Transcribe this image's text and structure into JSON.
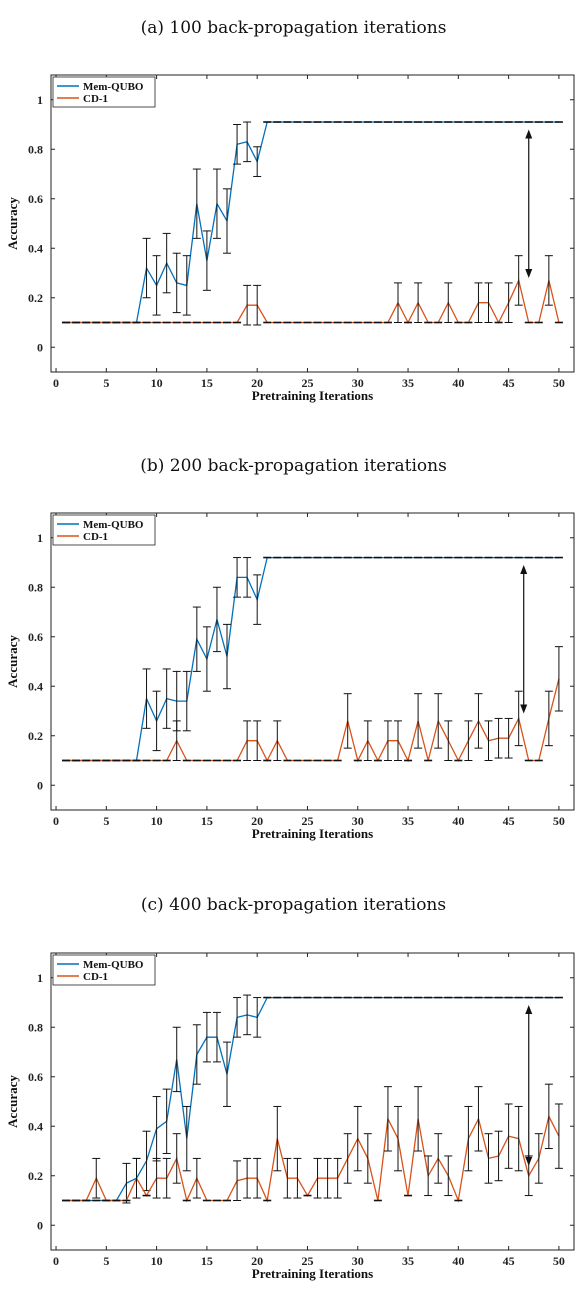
{
  "chart_data": [
    {
      "type": "line",
      "title": "(a) 100 back-propagation iterations",
      "xlabel": "Pretraining Iterations",
      "ylabel": "Accuracy",
      "xlim": [
        -0.5,
        51.5
      ],
      "ylim": [
        -0.1,
        1.1
      ],
      "xticks": [
        0,
        5,
        10,
        15,
        20,
        25,
        30,
        35,
        40,
        45,
        50
      ],
      "yticks": [
        0,
        0.2,
        0.4,
        0.6,
        0.8,
        1
      ],
      "legend": "top-left",
      "series": [
        {
          "name": "Mem-QUBO",
          "color": "#0072bd",
          "values": [
            0.1,
            0.1,
            0.1,
            0.1,
            0.1,
            0.1,
            0.1,
            0.1,
            0.32,
            0.25,
            0.34,
            0.26,
            0.25,
            0.58,
            0.35,
            0.58,
            0.51,
            0.82,
            0.83,
            0.75,
            0.91,
            0.91,
            0.91,
            0.91,
            0.91,
            0.91,
            0.91,
            0.91,
            0.91,
            0.91,
            0.91,
            0.91,
            0.91,
            0.91,
            0.91,
            0.91,
            0.91,
            0.91,
            0.91,
            0.91,
            0.91,
            0.91,
            0.91,
            0.91,
            0.91,
            0.91,
            0.91,
            0.91,
            0.91,
            0.91
          ],
          "errors": [
            0,
            0,
            0,
            0,
            0,
            0,
            0,
            0,
            0.12,
            0.12,
            0.12,
            0.12,
            0.12,
            0.14,
            0.12,
            0.14,
            0.13,
            0.08,
            0.08,
            0.06,
            0,
            0,
            0,
            0,
            0,
            0,
            0,
            0,
            0,
            0,
            0,
            0,
            0,
            0,
            0,
            0,
            0,
            0,
            0,
            0,
            0,
            0,
            0,
            0,
            0,
            0,
            0,
            0,
            0,
            0
          ]
        },
        {
          "name": "CD-1",
          "color": "#d95319",
          "values": [
            0.1,
            0.1,
            0.1,
            0.1,
            0.1,
            0.1,
            0.1,
            0.1,
            0.1,
            0.1,
            0.1,
            0.1,
            0.1,
            0.1,
            0.1,
            0.1,
            0.1,
            0.1,
            0.17,
            0.17,
            0.1,
            0.1,
            0.1,
            0.1,
            0.1,
            0.1,
            0.1,
            0.1,
            0.1,
            0.1,
            0.1,
            0.1,
            0.1,
            0.18,
            0.1,
            0.18,
            0.1,
            0.1,
            0.18,
            0.1,
            0.1,
            0.18,
            0.18,
            0.1,
            0.18,
            0.27,
            0.1,
            0.1,
            0.27,
            0.1
          ],
          "errors": [
            0,
            0,
            0,
            0,
            0,
            0,
            0,
            0,
            0,
            0,
            0,
            0,
            0,
            0,
            0,
            0,
            0,
            0,
            0.08,
            0.08,
            0,
            0,
            0,
            0,
            0,
            0,
            0,
            0,
            0,
            0,
            0,
            0,
            0,
            0.08,
            0,
            0.08,
            0,
            0,
            0.08,
            0,
            0,
            0.08,
            0.08,
            0,
            0.08,
            0.1,
            0,
            0,
            0.1,
            0
          ]
        }
      ],
      "arrow": {
        "x": 47,
        "y_from": 0.28,
        "y_to": 0.88
      }
    },
    {
      "type": "line",
      "title": "(b) 200 back-propagation iterations",
      "xlabel": "Pretraining Iterations",
      "ylabel": "Accuracy",
      "xlim": [
        -0.5,
        51.5
      ],
      "ylim": [
        -0.1,
        1.1
      ],
      "xticks": [
        0,
        5,
        10,
        15,
        20,
        25,
        30,
        35,
        40,
        45,
        50
      ],
      "yticks": [
        0,
        0.2,
        0.4,
        0.6,
        0.8,
        1
      ],
      "legend": "top-left",
      "series": [
        {
          "name": "Mem-QUBO",
          "color": "#0072bd",
          "values": [
            0.1,
            0.1,
            0.1,
            0.1,
            0.1,
            0.1,
            0.1,
            0.1,
            0.35,
            0.26,
            0.35,
            0.34,
            0.34,
            0.59,
            0.51,
            0.67,
            0.52,
            0.84,
            0.84,
            0.75,
            0.92,
            0.92,
            0.92,
            0.92,
            0.92,
            0.92,
            0.92,
            0.92,
            0.92,
            0.92,
            0.92,
            0.92,
            0.92,
            0.92,
            0.92,
            0.92,
            0.92,
            0.92,
            0.92,
            0.92,
            0.92,
            0.92,
            0.92,
            0.92,
            0.92,
            0.92,
            0.92,
            0.92,
            0.92,
            0.92
          ],
          "errors": [
            0,
            0,
            0,
            0,
            0,
            0,
            0,
            0,
            0.12,
            0.12,
            0.12,
            0.12,
            0.12,
            0.13,
            0.13,
            0.13,
            0.13,
            0.08,
            0.08,
            0.1,
            0,
            0,
            0,
            0,
            0,
            0,
            0,
            0,
            0,
            0,
            0,
            0,
            0,
            0,
            0,
            0,
            0,
            0,
            0,
            0,
            0,
            0,
            0,
            0,
            0,
            0,
            0,
            0,
            0,
            0
          ]
        },
        {
          "name": "CD-1",
          "color": "#d95319",
          "values": [
            0.1,
            0.1,
            0.1,
            0.1,
            0.1,
            0.1,
            0.1,
            0.1,
            0.1,
            0.1,
            0.1,
            0.18,
            0.1,
            0.1,
            0.1,
            0.1,
            0.1,
            0.1,
            0.18,
            0.18,
            0.1,
            0.18,
            0.1,
            0.1,
            0.1,
            0.1,
            0.1,
            0.1,
            0.26,
            0.1,
            0.18,
            0.1,
            0.18,
            0.18,
            0.1,
            0.26,
            0.1,
            0.26,
            0.18,
            0.1,
            0.18,
            0.26,
            0.18,
            0.19,
            0.19,
            0.27,
            0.1,
            0.1,
            0.27,
            0.43
          ],
          "errors": [
            0,
            0,
            0,
            0,
            0,
            0,
            0,
            0,
            0,
            0,
            0,
            0.08,
            0,
            0,
            0,
            0,
            0,
            0,
            0.08,
            0.08,
            0,
            0.08,
            0,
            0,
            0,
            0,
            0,
            0,
            0.11,
            0,
            0.08,
            0,
            0.08,
            0.08,
            0,
            0.11,
            0,
            0.11,
            0.08,
            0,
            0.08,
            0.11,
            0.08,
            0.08,
            0.08,
            0.11,
            0,
            0,
            0.11,
            0.13
          ]
        }
      ],
      "arrow": {
        "x": 46.5,
        "y_from": 0.29,
        "y_to": 0.89
      }
    },
    {
      "type": "line",
      "title": "(c) 400 back-propagation iterations",
      "xlabel": "Pretraining Iterations",
      "ylabel": "Accuracy",
      "xlim": [
        -0.5,
        51.5
      ],
      "ylim": [
        -0.1,
        1.1
      ],
      "xticks": [
        0,
        5,
        10,
        15,
        20,
        25,
        30,
        35,
        40,
        45,
        50
      ],
      "yticks": [
        0,
        0.2,
        0.4,
        0.6,
        0.8,
        1
      ],
      "legend": "top-left",
      "series": [
        {
          "name": "Mem-QUBO",
          "color": "#0072bd",
          "values": [
            0.1,
            0.1,
            0.1,
            0.1,
            0.1,
            0.1,
            0.17,
            0.19,
            0.26,
            0.39,
            0.42,
            0.67,
            0.35,
            0.69,
            0.76,
            0.76,
            0.61,
            0.84,
            0.85,
            0.84,
            0.92,
            0.92,
            0.92,
            0.92,
            0.92,
            0.92,
            0.92,
            0.92,
            0.92,
            0.92,
            0.92,
            0.92,
            0.92,
            0.92,
            0.92,
            0.92,
            0.92,
            0.92,
            0.92,
            0.92,
            0.92,
            0.92,
            0.92,
            0.92,
            0.92,
            0.92,
            0.92,
            0.92,
            0.92,
            0.92
          ],
          "errors": [
            0,
            0,
            0,
            0,
            0,
            0,
            0.08,
            0.08,
            0.12,
            0.13,
            0.13,
            0.13,
            0.13,
            0.12,
            0.1,
            0.1,
            0.13,
            0.08,
            0.08,
            0.08,
            0,
            0,
            0,
            0,
            0,
            0,
            0,
            0,
            0,
            0,
            0,
            0,
            0,
            0,
            0,
            0,
            0,
            0,
            0,
            0,
            0,
            0,
            0,
            0,
            0,
            0,
            0,
            0,
            0,
            0
          ]
        },
        {
          "name": "CD-1",
          "color": "#d95319",
          "values": [
            0.1,
            0.1,
            0.1,
            0.19,
            0.1,
            0.1,
            0.1,
            0.19,
            0.12,
            0.19,
            0.19,
            0.27,
            0.1,
            0.19,
            0.1,
            0.1,
            0.1,
            0.18,
            0.19,
            0.19,
            0.1,
            0.35,
            0.19,
            0.19,
            0.12,
            0.19,
            0.19,
            0.19,
            0.27,
            0.35,
            0.27,
            0.1,
            0.43,
            0.35,
            0.12,
            0.43,
            0.2,
            0.27,
            0.2,
            0.1,
            0.35,
            0.43,
            0.27,
            0.28,
            0.36,
            0.35,
            0.2,
            0.27,
            0.44,
            0.36
          ],
          "errors": [
            0,
            0,
            0,
            0.08,
            0,
            0,
            0,
            0.08,
            0,
            0.08,
            0.08,
            0.1,
            0,
            0.08,
            0,
            0,
            0,
            0.08,
            0.08,
            0.08,
            0,
            0.13,
            0.08,
            0.08,
            0,
            0.08,
            0.08,
            0.08,
            0.1,
            0.13,
            0.1,
            0,
            0.13,
            0.13,
            0,
            0.13,
            0.08,
            0.1,
            0.08,
            0,
            0.13,
            0.13,
            0.1,
            0.1,
            0.13,
            0.13,
            0.08,
            0.1,
            0.13,
            0.13
          ]
        }
      ],
      "arrow": {
        "x": 47,
        "y_from": 0.24,
        "y_to": 0.89
      }
    }
  ]
}
